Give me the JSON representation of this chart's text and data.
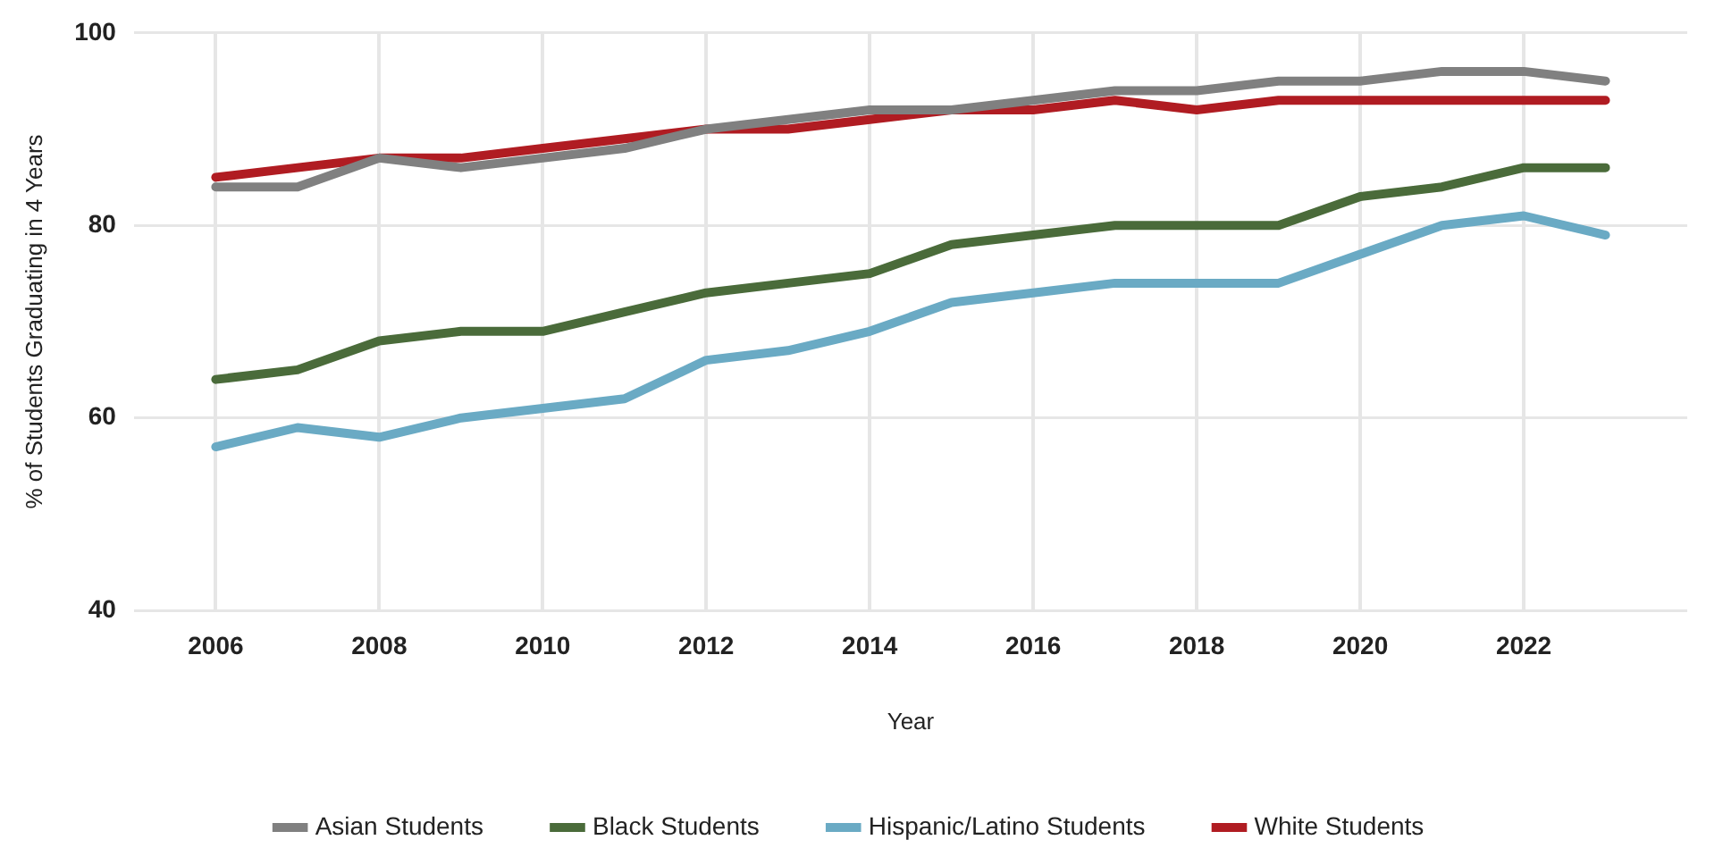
{
  "chart_data": {
    "type": "line",
    "xlabel": "Year",
    "ylabel": "% of Students Graduating in 4 Years",
    "x": [
      2006,
      2007,
      2008,
      2009,
      2010,
      2011,
      2012,
      2013,
      2014,
      2015,
      2016,
      2017,
      2018,
      2019,
      2020,
      2021,
      2022,
      2023
    ],
    "series": [
      {
        "name": "Asian Students",
        "color": "#808080",
        "values": [
          84,
          84,
          87,
          86,
          87,
          88,
          90,
          91,
          92,
          92,
          93,
          94,
          94,
          95,
          95,
          96,
          96,
          95
        ]
      },
      {
        "name": "Black Students",
        "color": "#4a6b3a",
        "values": [
          64,
          65,
          68,
          69,
          69,
          71,
          73,
          74,
          75,
          78,
          79,
          80,
          80,
          80,
          83,
          84,
          86,
          86
        ]
      },
      {
        "name": "Hispanic/Latino Students",
        "color": "#6aaac4",
        "values": [
          57,
          59,
          58,
          60,
          61,
          62,
          66,
          67,
          69,
          72,
          73,
          74,
          74,
          74,
          77,
          80,
          81,
          79
        ]
      },
      {
        "name": "White Students",
        "color": "#b01c22",
        "values": [
          85,
          86,
          87,
          87,
          88,
          89,
          90,
          90,
          91,
          92,
          92,
          93,
          92,
          93,
          93,
          93,
          93,
          93
        ]
      }
    ],
    "xlim": [
      2005,
      2024
    ],
    "xticks": [
      2006,
      2008,
      2010,
      2012,
      2014,
      2016,
      2018,
      2020,
      2022
    ],
    "ylim": [
      40,
      100
    ],
    "yticks": [
      40,
      60,
      80,
      100
    ],
    "grid": true,
    "legend": "bottom",
    "marker": "none",
    "line_style": "solid"
  }
}
